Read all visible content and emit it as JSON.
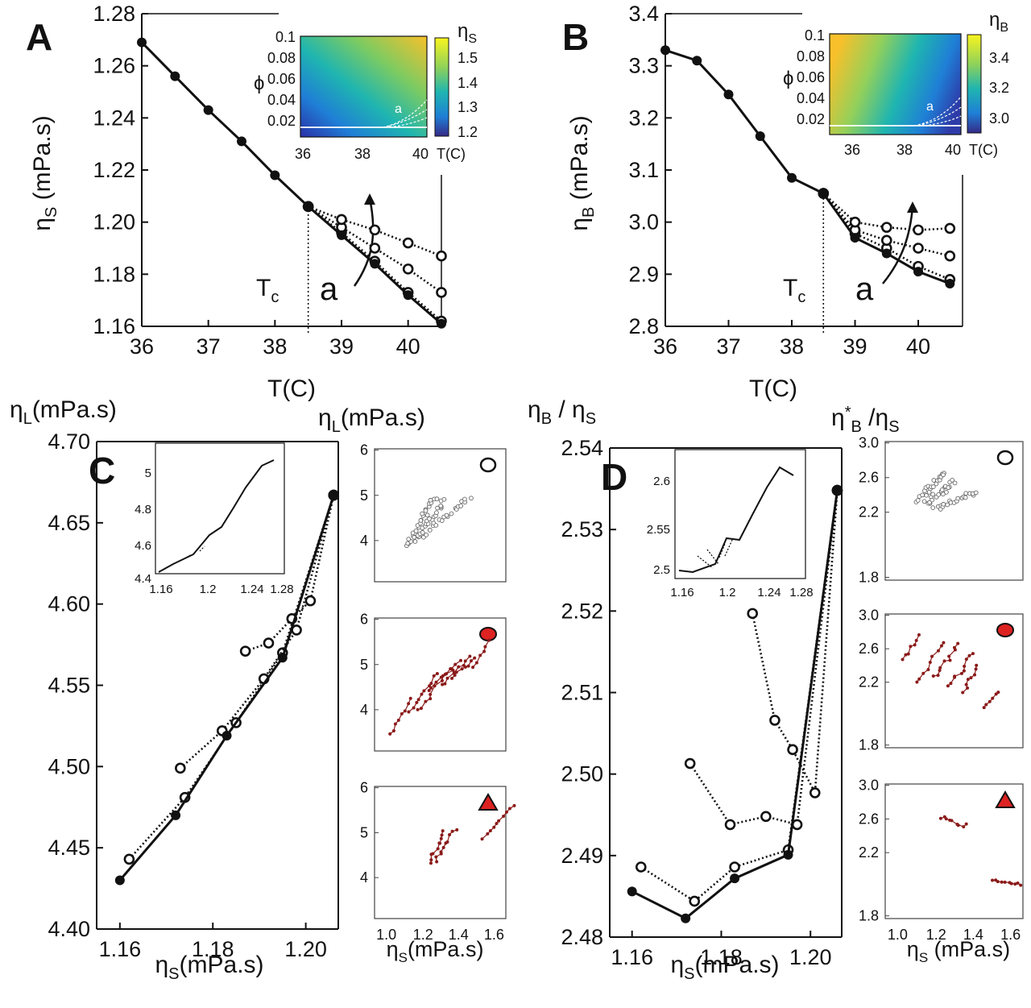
{
  "colors": {
    "axis": "#111111",
    "marker_red": "#dd2222",
    "series_red": "#8b1a1a",
    "open_marker": "#555555"
  },
  "panels": {
    "A": {
      "label": "A",
      "ylabel_sym": "η",
      "ylabel_sub": "S",
      "ylabel_unit": " (mPa.s)",
      "xlabel": "T(C)",
      "tc_sym": "T",
      "tc_sub": "c",
      "arrow_label": "a",
      "chart_data": {
        "type": "line",
        "xlim": [
          36,
          40.5
        ],
        "ylim": [
          1.16,
          1.28
        ],
        "xticks": [
          36,
          37,
          38,
          39,
          40
        ],
        "yticks": [
          1.16,
          1.18,
          1.2,
          1.22,
          1.24,
          1.26,
          1.28
        ],
        "ytick_labels": [
          "1.16",
          "1.18",
          "1.20",
          "1.22",
          "1.24",
          "1.26",
          "1.28"
        ],
        "tc": 38.5,
        "series": [
          {
            "style": "solid-filled",
            "x": [
              36,
              36.5,
              37,
              37.5,
              38,
              38.5,
              39,
              39.5,
              40,
              40.5
            ],
            "y": [
              1.269,
              1.256,
              1.243,
              1.231,
              1.218,
              1.206,
              1.195,
              1.184,
              1.172,
              1.161
            ]
          },
          {
            "style": "dotted-open",
            "x": [
              38.5,
              39,
              39.5,
              40,
              40.5
            ],
            "y": [
              1.206,
              1.196,
              1.185,
              1.173,
              1.162
            ]
          },
          {
            "style": "dotted-open",
            "x": [
              38.5,
              39,
              39.5,
              40,
              40.5
            ],
            "y": [
              1.206,
              1.198,
              1.19,
              1.182,
              1.173
            ]
          },
          {
            "style": "dotted-open",
            "x": [
              38.5,
              39,
              39.5,
              40,
              40.5
            ],
            "y": [
              1.206,
              1.201,
              1.197,
              1.192,
              1.187
            ]
          }
        ],
        "inset": {
          "type": "heatmap",
          "xticks": [
            36,
            38,
            40
          ],
          "xlabel": "T(C)",
          "yticks": [
            "0.1",
            "0.08",
            "0.06",
            "0.04",
            "0.02"
          ],
          "ylabel": "ϕ",
          "inset_label": "a",
          "colorbar_ticks": [
            "1.5",
            "1.4",
            "1.3",
            "1.2"
          ],
          "colorbar_label_sym": "η",
          "colorbar_label_sub": "S"
        }
      }
    },
    "B": {
      "label": "B",
      "ylabel_sym": "η",
      "ylabel_sub": "B",
      "ylabel_unit": " (mPa.s)",
      "xlabel": "T(C)",
      "tc_sym": "T",
      "tc_sub": "c",
      "arrow_label": "a",
      "chart_data": {
        "type": "line",
        "xlim": [
          36,
          40.7
        ],
        "ylim": [
          2.8,
          3.4
        ],
        "xticks": [
          36,
          37,
          38,
          39,
          40
        ],
        "yticks": [
          2.8,
          2.9,
          3.0,
          3.1,
          3.2,
          3.3,
          3.4
        ],
        "ytick_labels": [
          "2.8",
          "2.9",
          "3.0",
          "3.1",
          "3.2",
          "3.3",
          "3.4"
        ],
        "tc": 38.5,
        "series": [
          {
            "style": "solid-filled",
            "x": [
              36,
              36.5,
              37,
              37.5,
              38,
              38.5,
              39,
              39.5,
              40,
              40.5
            ],
            "y": [
              3.33,
              3.31,
              3.245,
              3.165,
              3.085,
              3.055,
              2.97,
              2.94,
              2.905,
              2.882
            ]
          },
          {
            "style": "dotted-open",
            "x": [
              38.5,
              39,
              39.5,
              40,
              40.5
            ],
            "y": [
              3.055,
              2.978,
              2.95,
              2.915,
              2.89
            ]
          },
          {
            "style": "dotted-open",
            "x": [
              38.5,
              39,
              39.5,
              40,
              40.5
            ],
            "y": [
              3.055,
              2.985,
              2.965,
              2.95,
              2.935
            ]
          },
          {
            "style": "dotted-open",
            "x": [
              38.5,
              39,
              39.5,
              40,
              40.5
            ],
            "y": [
              3.055,
              3.0,
              2.99,
              2.985,
              2.988
            ]
          }
        ],
        "inset": {
          "type": "heatmap",
          "xticks": [
            36,
            38,
            40
          ],
          "xlabel": "T(C)",
          "yticks": [
            "0.1",
            "0.08",
            "0.06",
            "0.04",
            "0.02"
          ],
          "ylabel": "ϕ",
          "inset_label": "a",
          "colorbar_ticks": [
            "3.4",
            "3.2",
            "3.0"
          ],
          "colorbar_label_sym": "η",
          "colorbar_label_sub": "B"
        }
      }
    },
    "C": {
      "label": "C",
      "ylabel_sym": "η",
      "ylabel_sub": "L",
      "ylabel_unit": "(mPa.s)",
      "xlabel_sym": "η",
      "xlabel_sub": "S",
      "xlabel_unit": "(mPa.s)",
      "chart_data": {
        "type": "line",
        "xlim": [
          1.155,
          1.207
        ],
        "ylim": [
          4.4,
          4.7
        ],
        "xticks": [
          1.16,
          1.18,
          1.2
        ],
        "xtick_labels": [
          "1.16",
          "1.18",
          "1.20"
        ],
        "yticks": [
          4.4,
          4.45,
          4.5,
          4.55,
          4.6,
          4.65,
          4.7
        ],
        "ytick_labels": [
          "4.40",
          "4.45",
          "4.50",
          "4.55",
          "4.60",
          "4.65",
          "4.70"
        ],
        "series": [
          {
            "style": "solid-filled",
            "x": [
              1.16,
              1.172,
              1.183,
              1.195,
              1.206
            ],
            "y": [
              4.43,
              4.47,
              4.519,
              4.567,
              4.667
            ]
          },
          {
            "style": "dotted-open",
            "x": [
              1.162,
              1.174,
              1.185,
              1.195,
              1.206
            ],
            "y": [
              4.443,
              4.481,
              4.527,
              4.57,
              4.667
            ]
          },
          {
            "style": "dotted-open",
            "x": [
              1.173,
              1.182,
              1.191,
              1.198,
              1.206
            ],
            "y": [
              4.499,
              4.522,
              4.554,
              4.584,
              4.667
            ]
          },
          {
            "style": "dotted-open",
            "x": [
              1.187,
              1.192,
              1.197,
              1.201,
              1.206
            ],
            "y": [
              4.571,
              4.576,
              4.591,
              4.602,
              4.667
            ]
          }
        ],
        "inset": {
          "xticks": [
            "1.16",
            "1.2",
            "1.24",
            "1.28"
          ],
          "yticks": [
            "5",
            "4.8",
            "4.6",
            "4.4"
          ]
        }
      },
      "side": {
        "ylabel_sym": "η",
        "ylabel_sub": "L",
        "ylabel_unit": "(mPa.s)",
        "xlabel_sym": "η",
        "xlabel_sub": "S",
        "xlabel_unit": "(mPa.s)",
        "yticks": [
          "6",
          "5",
          "4"
        ],
        "xticks": [
          "1.0",
          "1.2",
          "1.4",
          "1.6"
        ],
        "subplots": [
          {
            "marker": "circle-open"
          },
          {
            "marker": "circle-red"
          },
          {
            "marker": "triangle-red"
          }
        ]
      }
    },
    "D": {
      "label": "D",
      "ylabel": "η",
      "ylabel_sym": "η",
      "ylabel_sub": "B",
      "ylabel_mid": " / η",
      "ylabel_sub2": "S",
      "xlabel_sym": "η",
      "xlabel_sub": "S",
      "xlabel_unit": "(mPa.s)",
      "chart_data": {
        "type": "line",
        "xlim": [
          1.155,
          1.207
        ],
        "ylim": [
          2.48,
          2.54
        ],
        "xticks": [
          1.16,
          1.18,
          1.2
        ],
        "xtick_labels": [
          "1.16",
          "1.18",
          "1.20"
        ],
        "yticks": [
          2.48,
          2.49,
          2.5,
          2.51,
          2.52,
          2.53,
          2.54
        ],
        "ytick_labels": [
          "2.48",
          "2.49",
          "2.50",
          "2.51",
          "2.52",
          "2.53",
          "2.54"
        ],
        "series": [
          {
            "style": "solid-filled",
            "x": [
              1.16,
              1.172,
              1.183,
              1.195,
              1.206
            ],
            "y": [
              2.4856,
              2.4823,
              2.4872,
              2.4901,
              2.5348
            ]
          },
          {
            "style": "dotted-open",
            "x": [
              1.162,
              1.174,
              1.183,
              1.195,
              1.206
            ],
            "y": [
              2.4886,
              2.4844,
              2.4886,
              2.4907,
              2.5348
            ]
          },
          {
            "style": "dotted-open",
            "x": [
              1.173,
              1.182,
              1.19,
              1.197,
              1.206
            ],
            "y": [
              2.5013,
              2.4938,
              2.4948,
              2.4938,
              2.5348
            ]
          },
          {
            "style": "dotted-open",
            "x": [
              1.187,
              1.192,
              1.196,
              1.201,
              1.206
            ],
            "y": [
              2.5197,
              2.5066,
              2.503,
              2.4977,
              2.5348
            ]
          }
        ],
        "inset": {
          "xticks": [
            "1.16",
            "1.2",
            "1.24",
            "1.28"
          ],
          "yticks": [
            "2.6",
            "2.55",
            "2.5"
          ]
        }
      },
      "side": {
        "ylabel_sym": "η",
        "ylabel_sup": "*",
        "ylabel_sub": "B",
        "ylabel_mid": " /η",
        "ylabel_sub2": "S",
        "xlabel_sym": "η",
        "xlabel_sub": "S",
        "xlabel_unit": " (mPa.s)",
        "yticks": [
          "3.0",
          "2.6",
          "2.2",
          "1.8"
        ],
        "xticks": [
          "1.0",
          "1.2",
          "1.4",
          "1.6"
        ],
        "subplots": [
          {
            "marker": "circle-open"
          },
          {
            "marker": "circle-red"
          },
          {
            "marker": "triangle-red"
          }
        ]
      }
    }
  }
}
